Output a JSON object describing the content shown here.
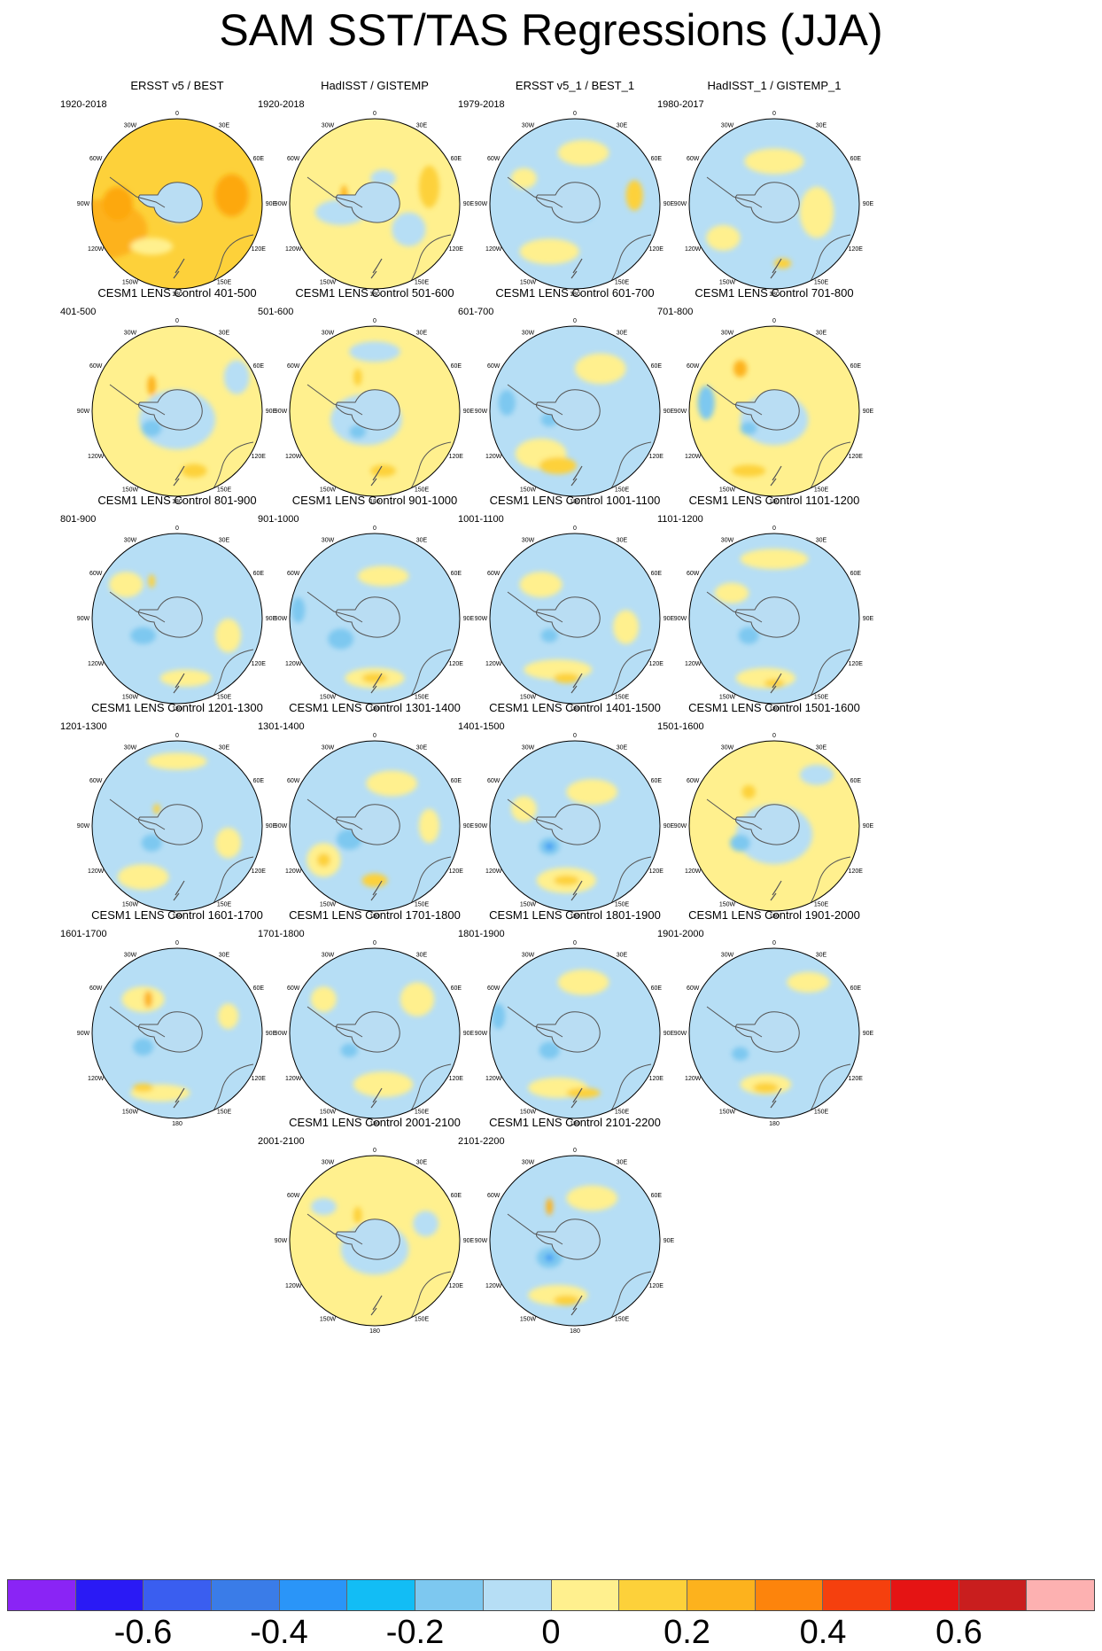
{
  "title": "SAM SST/TAS Regressions (JJA)",
  "panels": [
    {
      "title": "ERSST v5 / BEST",
      "period": "1920-2018",
      "bg": "#fdd13a",
      "blobs": [
        [
          "#fdb21d",
          0.05,
          0.65,
          0.55,
          0.35
        ],
        [
          "#fda80d",
          0.82,
          0.45,
          0.2,
          0.25
        ],
        [
          "#fda80d",
          0.15,
          0.5,
          0.18,
          0.2
        ],
        [
          "#b6def5",
          0.5,
          0.52,
          0.2,
          0.18
        ],
        [
          "#fff08e",
          0.35,
          0.75,
          0.25,
          0.1
        ]
      ]
    },
    {
      "title": "HadISST / GISTEMP",
      "period": "1920-2018",
      "bg": "#fff08e",
      "blobs": [
        [
          "#b6def5",
          0.3,
          0.55,
          0.3,
          0.15
        ],
        [
          "#b6def5",
          0.7,
          0.65,
          0.2,
          0.2
        ],
        [
          "#fdd13a",
          0.82,
          0.4,
          0.12,
          0.25
        ],
        [
          "#fdb21d",
          0.32,
          0.45,
          0.04,
          0.12
        ],
        [
          "#b6def5",
          0.55,
          0.35,
          0.15,
          0.1
        ]
      ]
    },
    {
      "title": "ERSST v5_1 / BEST_1",
      "period": "1979-2018",
      "bg": "#b6def5",
      "blobs": [
        [
          "#fff08e",
          0.55,
          0.2,
          0.3,
          0.15
        ],
        [
          "#fdd13a",
          0.85,
          0.45,
          0.1,
          0.18
        ],
        [
          "#fff08e",
          0.35,
          0.78,
          0.35,
          0.15
        ],
        [
          "#fff08e",
          0.2,
          0.35,
          0.15,
          0.12
        ],
        [
          "#7dc8f0",
          0.55,
          0.55,
          0.12,
          0.1
        ]
      ]
    },
    {
      "title": "HadISST_1 / GISTEMP_1",
      "period": "1980-2017",
      "bg": "#b6def5",
      "blobs": [
        [
          "#fff08e",
          0.5,
          0.25,
          0.35,
          0.15
        ],
        [
          "#fff08e",
          0.75,
          0.55,
          0.2,
          0.3
        ],
        [
          "#fdd13a",
          0.55,
          0.85,
          0.1,
          0.06
        ],
        [
          "#fff08e",
          0.2,
          0.7,
          0.2,
          0.15
        ]
      ]
    },
    {
      "title": "CESM1 LENS Control 401-500",
      "period": "401-500",
      "bg": "#fff08e",
      "blobs": [
        [
          "#b6def5",
          0.5,
          0.55,
          0.45,
          0.35
        ],
        [
          "#7dc8f0",
          0.35,
          0.6,
          0.12,
          0.1
        ],
        [
          "#b6def5",
          0.85,
          0.3,
          0.15,
          0.2
        ],
        [
          "#fdb21d",
          0.35,
          0.35,
          0.05,
          0.12
        ],
        [
          "#fdd13a",
          0.6,
          0.85,
          0.15,
          0.08
        ]
      ]
    },
    {
      "title": "CESM1 LENS Control 501-600",
      "period": "501-600",
      "bg": "#fff08e",
      "blobs": [
        [
          "#b6def5",
          0.45,
          0.55,
          0.42,
          0.3
        ],
        [
          "#7dc8f0",
          0.4,
          0.62,
          0.1,
          0.08
        ],
        [
          "#b6def5",
          0.5,
          0.15,
          0.3,
          0.12
        ],
        [
          "#fdd13a",
          0.55,
          0.85,
          0.15,
          0.07
        ],
        [
          "#fdd13a",
          0.4,
          0.3,
          0.05,
          0.1
        ]
      ]
    },
    {
      "title": "CESM1 LENS Control 601-700",
      "period": "601-700",
      "bg": "#b6def5",
      "blobs": [
        [
          "#fff08e",
          0.3,
          0.75,
          0.3,
          0.18
        ],
        [
          "#fdd13a",
          0.4,
          0.82,
          0.22,
          0.1
        ],
        [
          "#fff08e",
          0.65,
          0.25,
          0.3,
          0.18
        ],
        [
          "#7dc8f0",
          0.1,
          0.45,
          0.1,
          0.15
        ],
        [
          "#7dc8f0",
          0.35,
          0.55,
          0.1,
          0.08
        ]
      ]
    },
    {
      "title": "CESM1 LENS Control 701-800",
      "period": "701-800",
      "bg": "#fff08e",
      "blobs": [
        [
          "#b6def5",
          0.5,
          0.55,
          0.4,
          0.3
        ],
        [
          "#7dc8f0",
          0.1,
          0.45,
          0.1,
          0.2
        ],
        [
          "#7dc8f0",
          0.35,
          0.6,
          0.1,
          0.08
        ],
        [
          "#fdb21d",
          0.3,
          0.25,
          0.08,
          0.1
        ],
        [
          "#fdd13a",
          0.35,
          0.85,
          0.2,
          0.07
        ]
      ]
    },
    {
      "title": "CESM1 LENS Control 801-900",
      "period": "801-900",
      "bg": "#b6def5",
      "blobs": [
        [
          "#fff08e",
          0.55,
          0.85,
          0.3,
          0.1
        ],
        [
          "#fff08e",
          0.2,
          0.3,
          0.2,
          0.15
        ],
        [
          "#fff08e",
          0.8,
          0.6,
          0.15,
          0.2
        ],
        [
          "#7dc8f0",
          0.3,
          0.6,
          0.15,
          0.1
        ],
        [
          "#fdd13a",
          0.35,
          0.28,
          0.04,
          0.08
        ]
      ]
    },
    {
      "title": "CESM1 LENS Control 901-1000",
      "period": "901-1000",
      "bg": "#b6def5",
      "blobs": [
        [
          "#fff08e",
          0.5,
          0.85,
          0.35,
          0.12
        ],
        [
          "#fdd13a",
          0.5,
          0.85,
          0.15,
          0.06
        ],
        [
          "#fff08e",
          0.55,
          0.25,
          0.3,
          0.12
        ],
        [
          "#7dc8f0",
          0.3,
          0.62,
          0.15,
          0.12
        ],
        [
          "#7dc8f0",
          0.05,
          0.45,
          0.08,
          0.15
        ]
      ]
    },
    {
      "title": "CESM1 LENS Control 1001-1100",
      "period": "1001-1100",
      "bg": "#b6def5",
      "blobs": [
        [
          "#fff08e",
          0.4,
          0.8,
          0.4,
          0.12
        ],
        [
          "#fdd13a",
          0.45,
          0.85,
          0.15,
          0.06
        ],
        [
          "#fff08e",
          0.3,
          0.3,
          0.25,
          0.15
        ],
        [
          "#fff08e",
          0.8,
          0.55,
          0.15,
          0.2
        ],
        [
          "#7dc8f0",
          0.35,
          0.6,
          0.1,
          0.08
        ]
      ]
    },
    {
      "title": "CESM1 LENS Control 1101-1200",
      "period": "1101-1200",
      "bg": "#b6def5",
      "blobs": [
        [
          "#fff08e",
          0.5,
          0.15,
          0.4,
          0.12
        ],
        [
          "#fff08e",
          0.45,
          0.85,
          0.35,
          0.12
        ],
        [
          "#fdd13a",
          0.5,
          0.88,
          0.12,
          0.05
        ],
        [
          "#7dc8f0",
          0.35,
          0.6,
          0.12,
          0.1
        ],
        [
          "#fff08e",
          0.25,
          0.35,
          0.2,
          0.12
        ]
      ]
    },
    {
      "title": "CESM1 LENS Control 1201-1300",
      "period": "1201-1300",
      "bg": "#b6def5",
      "blobs": [
        [
          "#fff08e",
          0.5,
          0.12,
          0.35,
          0.1
        ],
        [
          "#fff08e",
          0.3,
          0.8,
          0.3,
          0.15
        ],
        [
          "#fff08e",
          0.8,
          0.6,
          0.15,
          0.18
        ],
        [
          "#7dc8f0",
          0.35,
          0.6,
          0.12,
          0.1
        ],
        [
          "#fdd13a",
          0.38,
          0.4,
          0.04,
          0.06
        ]
      ]
    },
    {
      "title": "CESM1 LENS Control 1301-1400",
      "period": "1301-1400",
      "bg": "#b6def5",
      "blobs": [
        [
          "#fff08e",
          0.2,
          0.7,
          0.2,
          0.2
        ],
        [
          "#fdd13a",
          0.2,
          0.7,
          0.08,
          0.08
        ],
        [
          "#fdd13a",
          0.5,
          0.82,
          0.15,
          0.08
        ],
        [
          "#fff08e",
          0.6,
          0.25,
          0.3,
          0.15
        ],
        [
          "#7dc8f0",
          0.35,
          0.58,
          0.15,
          0.12
        ],
        [
          "#fff08e",
          0.82,
          0.5,
          0.12,
          0.2
        ]
      ]
    },
    {
      "title": "CESM1 LENS Control 1401-1500",
      "period": "1401-1500",
      "bg": "#b6def5",
      "blobs": [
        [
          "#fff08e",
          0.45,
          0.82,
          0.35,
          0.15
        ],
        [
          "#fdd13a",
          0.45,
          0.82,
          0.15,
          0.06
        ],
        [
          "#fff08e",
          0.6,
          0.3,
          0.3,
          0.15
        ],
        [
          "#7dc8f0",
          0.35,
          0.62,
          0.12,
          0.1
        ],
        [
          "#3a9af5",
          0.35,
          0.62,
          0.05,
          0.04
        ],
        [
          "#fff08e",
          0.2,
          0.4,
          0.15,
          0.15
        ]
      ]
    },
    {
      "title": "CESM1 LENS Control 1501-1600",
      "period": "1501-1600",
      "bg": "#fff08e",
      "blobs": [
        [
          "#b6def5",
          0.5,
          0.55,
          0.45,
          0.35
        ],
        [
          "#7dc8f0",
          0.3,
          0.6,
          0.12,
          0.1
        ],
        [
          "#fdd13a",
          0.35,
          0.3,
          0.08,
          0.08
        ],
        [
          "#b6def5",
          0.75,
          0.2,
          0.2,
          0.12
        ]
      ]
    },
    {
      "title": "CESM1 LENS Control 1601-1700",
      "period": "1601-1700",
      "bg": "#b6def5",
      "blobs": [
        [
          "#fff08e",
          0.4,
          0.85,
          0.35,
          0.1
        ],
        [
          "#fdd13a",
          0.3,
          0.82,
          0.12,
          0.05
        ],
        [
          "#fff08e",
          0.3,
          0.3,
          0.25,
          0.15
        ],
        [
          "#fdb21d",
          0.33,
          0.3,
          0.05,
          0.1
        ],
        [
          "#7dc8f0",
          0.3,
          0.58,
          0.12,
          0.1
        ],
        [
          "#fff08e",
          0.8,
          0.4,
          0.12,
          0.15
        ]
      ]
    },
    {
      "title": "CESM1 LENS Control 1701-1800",
      "period": "1701-1800",
      "bg": "#b6def5",
      "blobs": [
        [
          "#fff08e",
          0.55,
          0.8,
          0.35,
          0.15
        ],
        [
          "#fff08e",
          0.75,
          0.3,
          0.2,
          0.2
        ],
        [
          "#fff08e",
          0.2,
          0.3,
          0.15,
          0.15
        ],
        [
          "#7dc8f0",
          0.35,
          0.6,
          0.1,
          0.08
        ]
      ]
    },
    {
      "title": "CESM1 LENS Control 1801-1900",
      "period": "1801-1900",
      "bg": "#b6def5",
      "blobs": [
        [
          "#fff08e",
          0.55,
          0.2,
          0.3,
          0.15
        ],
        [
          "#fff08e",
          0.4,
          0.82,
          0.35,
          0.12
        ],
        [
          "#fdd13a",
          0.55,
          0.85,
          0.2,
          0.06
        ],
        [
          "#7dc8f0",
          0.05,
          0.4,
          0.08,
          0.15
        ],
        [
          "#7dc8f0",
          0.35,
          0.6,
          0.12,
          0.1
        ]
      ]
    },
    {
      "title": "CESM1 LENS Control 1901-2000",
      "period": "1901-2000",
      "bg": "#b6def5",
      "blobs": [
        [
          "#fff08e",
          0.45,
          0.8,
          0.3,
          0.12
        ],
        [
          "#fdd13a",
          0.45,
          0.82,
          0.15,
          0.06
        ],
        [
          "#fff08e",
          0.7,
          0.2,
          0.25,
          0.12
        ],
        [
          "#7dc8f0",
          0.3,
          0.62,
          0.1,
          0.08
        ]
      ]
    },
    {
      "title": "CESM1 LENS Control 2001-2100",
      "period": "2001-2100",
      "bg": "#fff08e",
      "blobs": [
        [
          "#b6def5",
          0.5,
          0.55,
          0.4,
          0.3
        ],
        [
          "#b6def5",
          0.2,
          0.3,
          0.15,
          0.1
        ],
        [
          "#b6def5",
          0.8,
          0.4,
          0.15,
          0.15
        ],
        [
          "#fdd13a",
          0.4,
          0.35,
          0.05,
          0.1
        ]
      ]
    },
    {
      "title": "CESM1 LENS Control 2101-2200",
      "period": "2101-2200",
      "bg": "#b6def5",
      "blobs": [
        [
          "#fff08e",
          0.4,
          0.82,
          0.35,
          0.12
        ],
        [
          "#fdd13a",
          0.45,
          0.85,
          0.15,
          0.06
        ],
        [
          "#fff08e",
          0.6,
          0.25,
          0.3,
          0.15
        ],
        [
          "#7dc8f0",
          0.35,
          0.6,
          0.15,
          0.12
        ],
        [
          "#3a9af5",
          0.35,
          0.6,
          0.05,
          0.04
        ],
        [
          "#fdb21d",
          0.35,
          0.3,
          0.04,
          0.1
        ]
      ]
    }
  ],
  "axis_labels": {
    "top": "0",
    "tr": "30E",
    "rt": "60E",
    "right": "90E",
    "rb": "120E",
    "br": "150E",
    "bottom": "180",
    "bl": "150W",
    "lb": "120W",
    "left": "90W",
    "lt": "60W",
    "tl": "30W"
  },
  "colorbar": {
    "colors": [
      "#8a24f5",
      "#2a1af5",
      "#3a5ef0",
      "#3a7ce8",
      "#2a95f8",
      "#12bdf5",
      "#7dc8f0",
      "#b6def5",
      "#fff08e",
      "#fdd13a",
      "#fdb21d",
      "#fd840c",
      "#f5400e",
      "#e51414",
      "#c91e1e",
      "#fdb1b1"
    ],
    "tick_labels": [
      "-0.6",
      "-0.4",
      "-0.2",
      "0",
      "0.2",
      "0.4",
      "0.6"
    ]
  }
}
